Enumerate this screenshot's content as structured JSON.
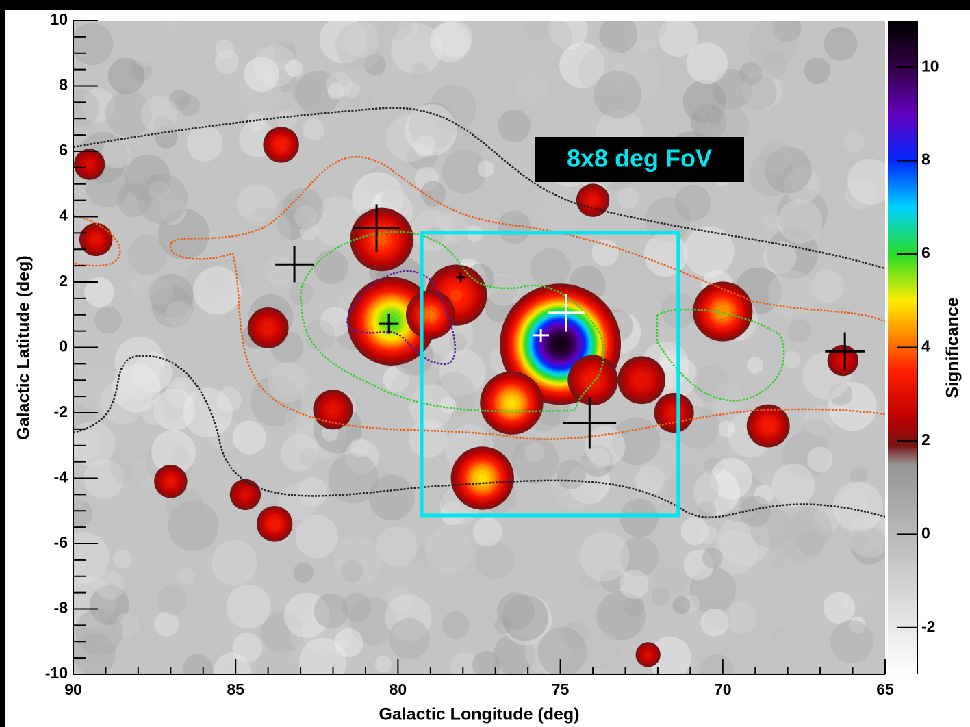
{
  "chart_data": {
    "type": "heatmap",
    "xlabel": "Galactic Longitude (deg)",
    "ylabel": "Galactic Latitude (deg)",
    "colorbar_label": "Significance",
    "xlim": [
      90,
      65
    ],
    "xticks": [
      90,
      85,
      80,
      75,
      70,
      65
    ],
    "ylim": [
      -10,
      10
    ],
    "yticks": [
      -10,
      -8,
      -6,
      -4,
      -2,
      0,
      2,
      4,
      6,
      8,
      10
    ],
    "zlim": [
      -3,
      11
    ],
    "zticks": [
      -2,
      0,
      2,
      4,
      6,
      8,
      10
    ],
    "hotspots": [
      {
        "lon": 75.0,
        "lat": 0.1,
        "peak": 10.8,
        "size": 1.0
      },
      {
        "lon": 80.2,
        "lat": 0.8,
        "peak": 6,
        "size": 0.9
      },
      {
        "lon": 76.5,
        "lat": -1.7,
        "peak": 5,
        "size": 0.7
      },
      {
        "lon": 77.4,
        "lat": -4.0,
        "peak": 5,
        "size": 0.7
      },
      {
        "lon": 80.5,
        "lat": 3.3,
        "peak": 4,
        "size": 0.8
      },
      {
        "lon": 78.2,
        "lat": 1.6,
        "peak": 3.8,
        "size": 0.8
      },
      {
        "lon": 79.0,
        "lat": 1.0,
        "peak": 4.2,
        "size": 0.6
      },
      {
        "lon": 70.0,
        "lat": 1.1,
        "peak": 4.5,
        "size": 0.7
      },
      {
        "lon": 68.6,
        "lat": -2.4,
        "peak": 3.5,
        "size": 0.6
      },
      {
        "lon": 74.0,
        "lat": -1.0,
        "peak": 3.5,
        "size": 0.7
      },
      {
        "lon": 72.5,
        "lat": -1.0,
        "peak": 3.3,
        "size": 0.7
      },
      {
        "lon": 71.5,
        "lat": -2.0,
        "peak": 3.2,
        "size": 0.6
      },
      {
        "lon": 82.0,
        "lat": -1.9,
        "peak": 3.2,
        "size": 0.6
      },
      {
        "lon": 84.0,
        "lat": 0.6,
        "peak": 3.3,
        "size": 0.6
      },
      {
        "lon": 83.6,
        "lat": 6.2,
        "peak": 3.5,
        "size": 0.5
      },
      {
        "lon": 89.3,
        "lat": 3.3,
        "peak": 3.2,
        "size": 0.5
      },
      {
        "lon": 89.5,
        "lat": 5.6,
        "peak": 3,
        "size": 0.5
      },
      {
        "lon": 87.0,
        "lat": -4.1,
        "peak": 3.2,
        "size": 0.5
      },
      {
        "lon": 83.8,
        "lat": -5.4,
        "peak": 3.5,
        "size": 0.5
      },
      {
        "lon": 84.7,
        "lat": -4.5,
        "peak": 3,
        "size": 0.5
      },
      {
        "lon": 72.3,
        "lat": -9.4,
        "peak": 3,
        "size": 0.4
      },
      {
        "lon": 74.0,
        "lat": 4.5,
        "peak": 3.2,
        "size": 0.5
      },
      {
        "lon": 66.3,
        "lat": -0.4,
        "peak": 3,
        "size": 0.5
      }
    ],
    "sources": [
      {
        "lon": 80.66,
        "lat": 3.65,
        "lon_err": 0.74,
        "lat_err": 0.73,
        "color": "#000000"
      },
      {
        "lon": 83.19,
        "lat": 2.54,
        "lon_err": 0.59,
        "lat_err": 0.55,
        "color": "#000000"
      },
      {
        "lon": 80.28,
        "lat": 0.72,
        "lon_err": 0.3,
        "lat_err": 0.3,
        "color": "#000000"
      },
      {
        "lon": 78.07,
        "lat": 2.15,
        "lon_err": 0.15,
        "lat_err": 0.15,
        "color": "#000000"
      },
      {
        "lon": 74.82,
        "lat": 1.06,
        "lon_err": 0.56,
        "lat_err": 0.58,
        "color": "#ffffff"
      },
      {
        "lon": 75.6,
        "lat": 0.37,
        "lon_err": 0.25,
        "lat_err": 0.2,
        "color": "#ffffff"
      },
      {
        "lon": 74.1,
        "lat": -2.31,
        "lon_err": 0.82,
        "lat_err": 0.79,
        "color": "#000000"
      },
      {
        "lon": 66.24,
        "lat": -0.12,
        "lon_err": 0.61,
        "lat_err": 0.58,
        "color": "#000000"
      }
    ],
    "fov": {
      "label": "8x8 deg FoV",
      "lon": [
        79.27,
        71.37
      ],
      "lat": [
        3.51,
        -5.14
      ],
      "color": "#00e5ee"
    }
  }
}
